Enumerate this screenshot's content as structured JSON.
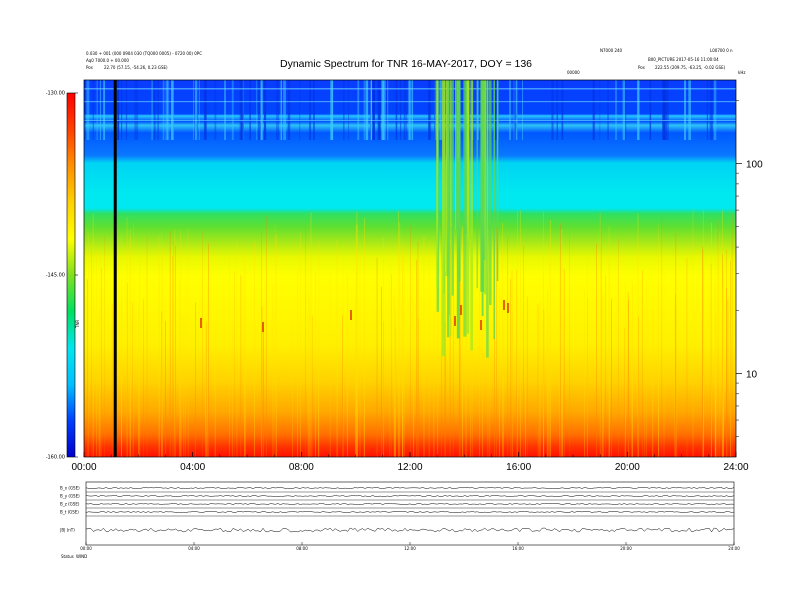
{
  "header": {
    "title": "Dynamic Spectrum for TNR 16-MAY-2017, DOY = 136",
    "left_line1": "0.030 + 001 (000 0904 030 (TQ000 0005) - 0720 00) 0PC",
    "left_line2": "Aq0 7000.0 + 00.000",
    "left_line3_label": "Pos",
    "left_line3_value": "22.70 (57.15, -54.26, 0.23 GSE)",
    "right_line1_a": "N7000 240",
    "right_line1_b": "L00700 0 n",
    "right_line2": "B00_PICTURE 2017-05-16 11:00:04",
    "right_line3_label": "Pos",
    "right_line3_value": "222.55 (209.75, -63.25, -0.02 GSE)",
    "marker_a": "00000",
    "marker_b": "kHz"
  },
  "colorbar": {
    "label": "TNR",
    "ticks": [
      "-130.00",
      "-145.00",
      "-160.00"
    ],
    "stops": [
      "#0000cc",
      "#0040ff",
      "#00c0ff",
      "#00e6f0",
      "#00e060",
      "#80e020",
      "#ffff00",
      "#ffd000",
      "#ff9000",
      "#ff4000",
      "#ff0000"
    ]
  },
  "chart_data": [
    {
      "type": "heatmap",
      "title": "Dynamic Spectrum for TNR 16-MAY-2017, DOY = 136",
      "xlabel": "",
      "ylabel": "kHz",
      "x_ticks": [
        "00:00",
        "04:00",
        "08:00",
        "12:00",
        "16:00",
        "20:00",
        "24:00"
      ],
      "x_range_hours": [
        0,
        24
      ],
      "y_scale": "log",
      "y_ticks": [
        "100",
        "10"
      ],
      "y_range_khz": [
        4,
        250
      ],
      "color_range": [
        -160,
        -130
      ],
      "color_ticks": [
        -130,
        -145,
        -160
      ],
      "bands": [
        {
          "from_khz": 190,
          "to_khz": 250,
          "level": "dark blue with cyan stripes"
        },
        {
          "from_khz": 140,
          "to_khz": 190,
          "level": "blue"
        },
        {
          "from_khz": 50,
          "to_khz": 140,
          "level": "cyan"
        },
        {
          "from_khz": 36,
          "to_khz": 50,
          "level": "green"
        },
        {
          "from_khz": 8,
          "to_khz": 36,
          "level": "yellow"
        },
        {
          "from_khz": 4,
          "to_khz": 8,
          "level": "orange to red"
        }
      ],
      "features": [
        {
          "name": "data gap",
          "time_hours": 1.15,
          "color": "#000000"
        },
        {
          "name": "burst",
          "from_hours": 12.9,
          "to_hours": 15.2,
          "color": "#80e020"
        }
      ]
    },
    {
      "type": "line",
      "panels": [
        "B_x (GSE)",
        "B_y (GSE)",
        "B_z (GSE)",
        "B_t (GSE)",
        "|B| (nT)"
      ],
      "x_ticks": [
        "00:00",
        "04:00",
        "08:00",
        "12:00",
        "16:00",
        "20:00",
        "24:00"
      ]
    }
  ],
  "bottom": {
    "status_label": "Status",
    "status_value": "WIND"
  }
}
